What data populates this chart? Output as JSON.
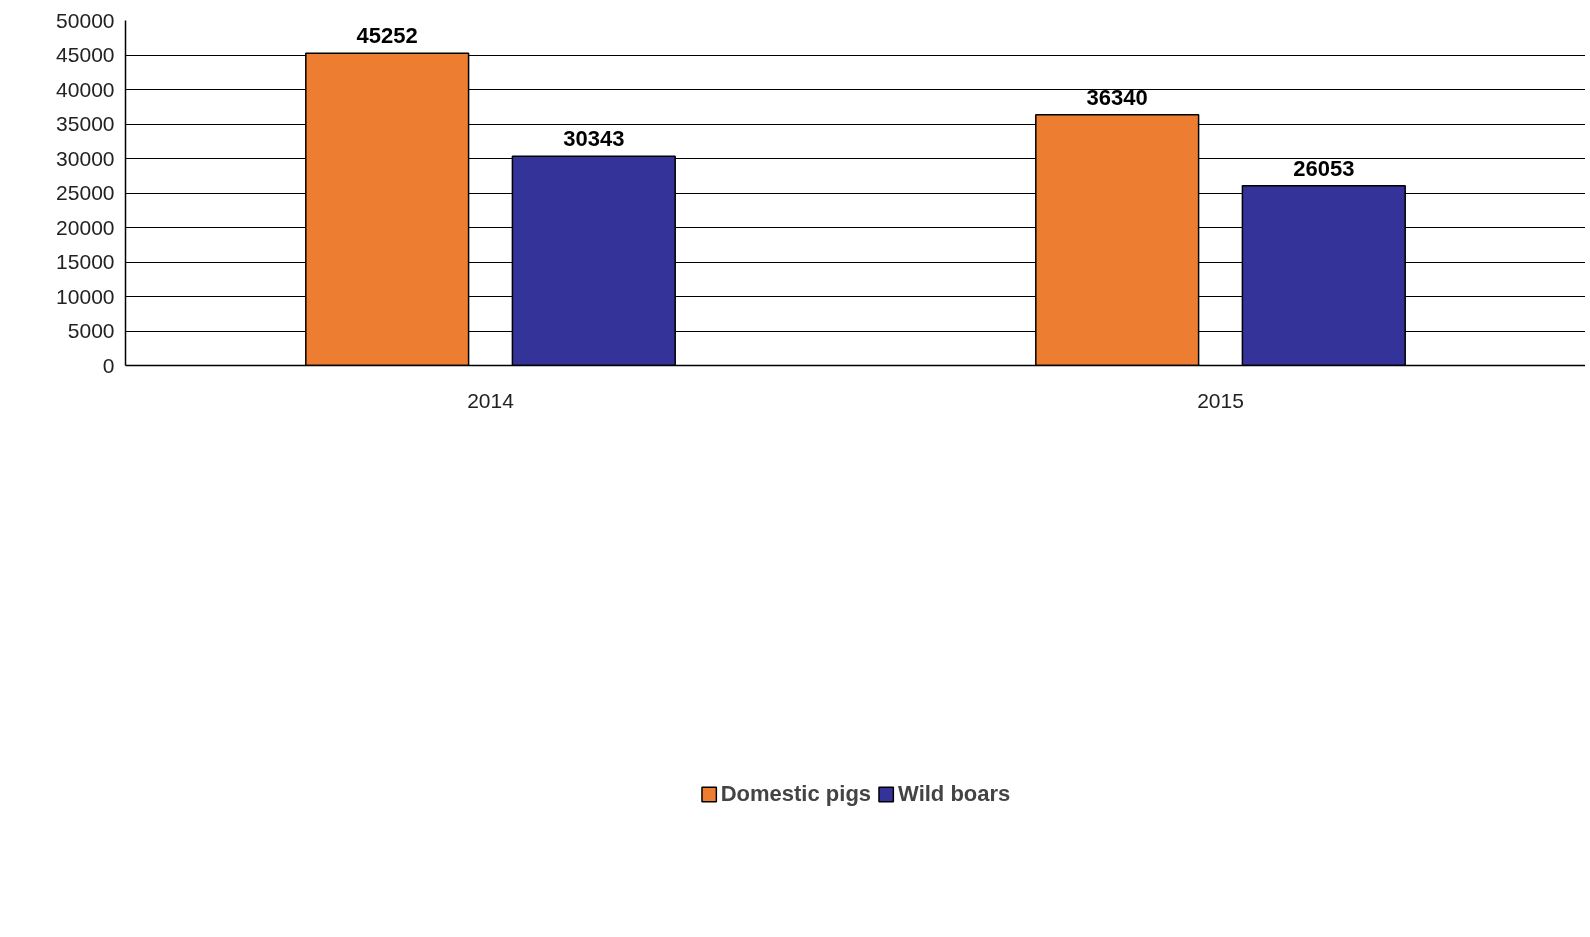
{
  "chart_data": {
    "type": "bar",
    "categories": [
      "2014",
      "2015"
    ],
    "series": [
      {
        "name": "Domestic pigs",
        "color": "#ed7d31",
        "values": [
          45252,
          36340
        ]
      },
      {
        "name": "Wild boars",
        "color": "#333399",
        "values": [
          30343,
          26053
        ]
      }
    ],
    "ylim": [
      0,
      50000
    ],
    "yticks": [
      0,
      5000,
      10000,
      15000,
      20000,
      25000,
      30000,
      35000,
      40000,
      45000,
      50000
    ],
    "grid": "y",
    "legend": "bottom",
    "data_labels": true
  }
}
